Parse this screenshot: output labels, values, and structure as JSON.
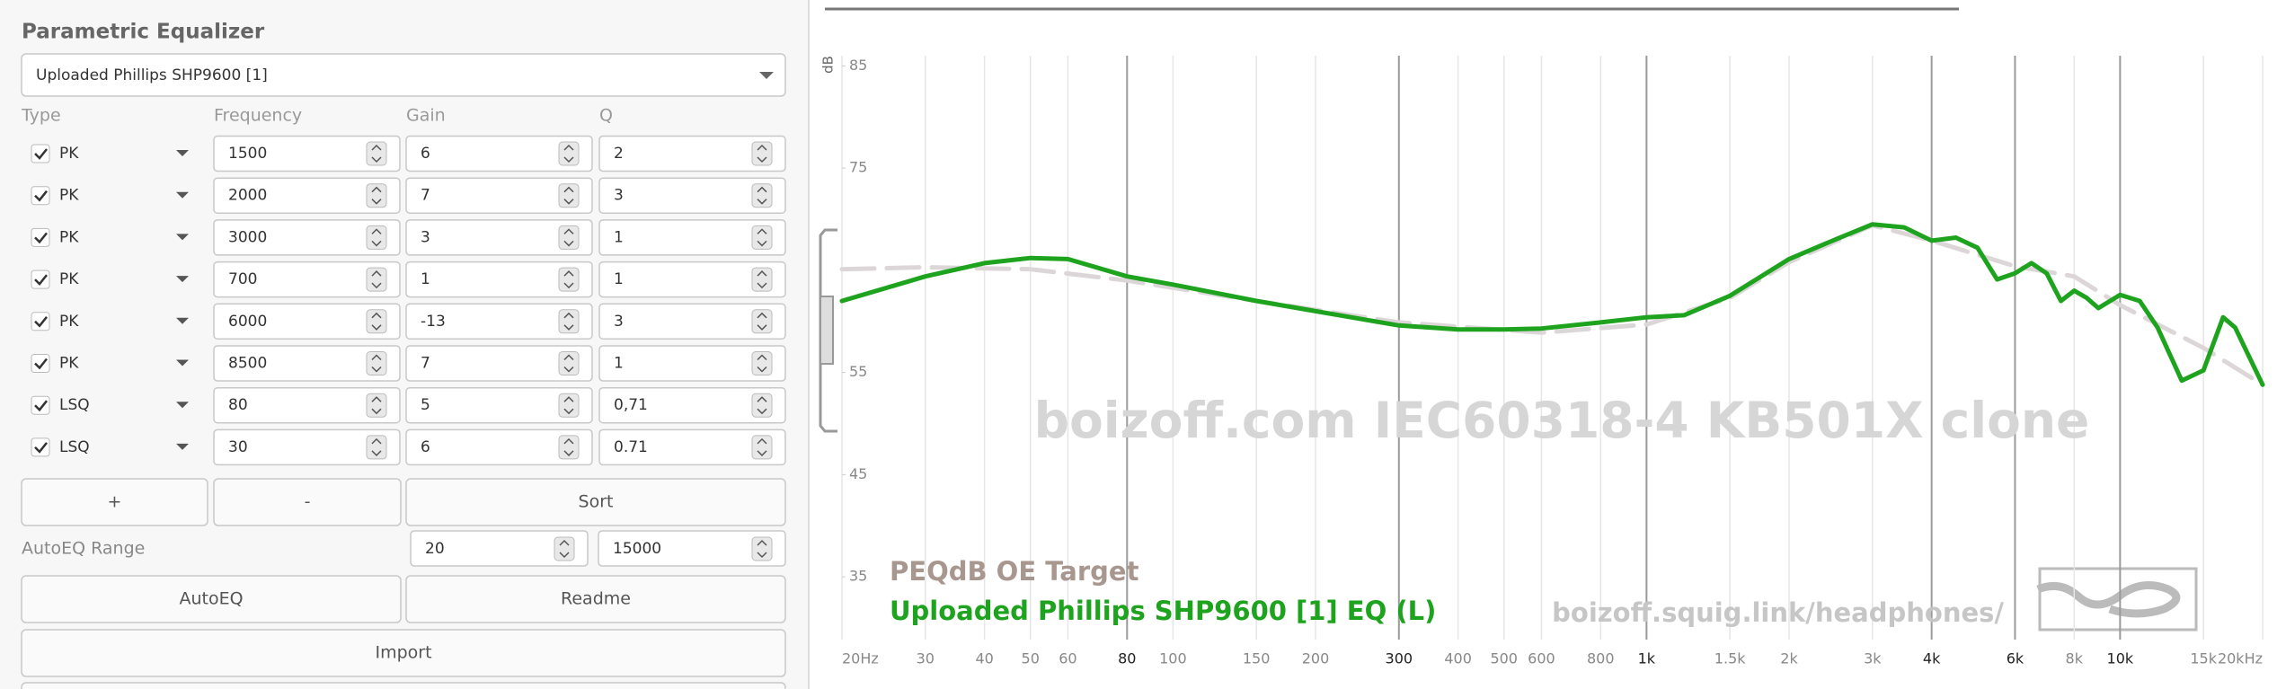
{
  "panel": {
    "title": "Parametric Equalizer",
    "preset": "Uploaded Phillips SHP9600 [1]",
    "columns": [
      "Type",
      "Frequency",
      "Gain",
      "Q"
    ],
    "filters": [
      {
        "type": "PK",
        "frequency": "1500",
        "gain": "6",
        "q": "2"
      },
      {
        "type": "PK",
        "frequency": "2000",
        "gain": "7",
        "q": "3"
      },
      {
        "type": "PK",
        "frequency": "3000",
        "gain": "3",
        "q": "1"
      },
      {
        "type": "PK",
        "frequency": "700",
        "gain": "1",
        "q": "1"
      },
      {
        "type": "PK",
        "frequency": "6000",
        "gain": "-13",
        "q": "3"
      },
      {
        "type": "PK",
        "frequency": "8500",
        "gain": "7",
        "q": "1"
      },
      {
        "type": "LSQ",
        "frequency": "80",
        "gain": "5",
        "q": "0,71"
      },
      {
        "type": "LSQ",
        "frequency": "30",
        "gain": "6",
        "q": "0.71"
      }
    ],
    "buttons": {
      "add": "+",
      "remove": "-",
      "sort": "Sort"
    },
    "autoeq_range": {
      "label": "AutoEQ Range",
      "from": "20",
      "to": "15000"
    },
    "autoeq": "AutoEQ",
    "readme": "Readme",
    "import": "Import"
  },
  "graph": {
    "type": "line",
    "y_label": "dB",
    "x_scale": "log",
    "xlim": [
      20,
      20000
    ],
    "ylim": [
      30,
      86
    ],
    "xticks": [
      {
        "value": 20,
        "label": "20Hz"
      },
      30,
      40,
      50,
      60,
      80,
      100,
      150,
      200,
      300,
      400,
      500,
      600,
      800,
      {
        "value": 1000,
        "label": "1k"
      },
      {
        "value": 1500,
        "label": "1.5k"
      },
      {
        "value": 2000,
        "label": "2k"
      },
      {
        "value": 3000,
        "label": "3k"
      },
      {
        "value": 4000,
        "label": "4k"
      },
      {
        "value": 6000,
        "label": "6k"
      },
      {
        "value": 8000,
        "label": "8k"
      },
      {
        "value": 10000,
        "label": "10k"
      },
      {
        "value": 15000,
        "label": "15k"
      },
      {
        "value": 20000,
        "label": "20kHz"
      }
    ],
    "emphasized_xticks": [
      80,
      300,
      1000,
      4000,
      6000,
      10000
    ],
    "yticks": [
      35,
      45,
      55,
      75,
      85
    ],
    "series": [
      {
        "name": "PEQdB OE Target",
        "color": "#ddd6d9",
        "label_color": "#a8978f",
        "dashed": true,
        "x": [
          20,
          30,
          50,
          80,
          150,
          300,
          600,
          1000,
          1500,
          2000,
          3000,
          4000,
          6000,
          8000,
          10000,
          15000,
          20000
        ],
        "values": [
          65.1,
          65.3,
          65.1,
          64,
          62,
          59.9,
          58.9,
          59.7,
          62.3,
          65.8,
          69.4,
          67.9,
          65.4,
          64.4,
          61.6,
          57.4,
          53.8
        ]
      },
      {
        "name": "Uploaded Phillips SHP9600 [1] EQ (L)",
        "color": "#1ea31e",
        "label_color": "#1ea31e",
        "dashed": false,
        "x": [
          20,
          30,
          40,
          50,
          60,
          80,
          100,
          150,
          200,
          300,
          400,
          500,
          600,
          800,
          1000,
          1200,
          1500,
          2000,
          2500,
          3000,
          3500,
          4000,
          4500,
          5000,
          5500,
          6000,
          6500,
          7000,
          7500,
          8000,
          8500,
          9000,
          10000,
          11000,
          12000,
          13500,
          15000,
          16500,
          17500,
          20000
        ],
        "values": [
          62,
          64.4,
          65.7,
          66.2,
          66.1,
          64.4,
          63.6,
          62,
          61,
          59.6,
          59.2,
          59.2,
          59.3,
          59.9,
          60.4,
          60.6,
          62.5,
          66.1,
          68,
          69.5,
          69.2,
          67.9,
          68.2,
          67.2,
          64.1,
          64.7,
          65.7,
          64.7,
          62,
          63,
          62.3,
          61.3,
          62.6,
          62,
          59.4,
          54.2,
          55.2,
          60.4,
          59.4,
          53.8
        ]
      }
    ],
    "watermark": "boizoff.com IEC60318-4 KB501X clone",
    "url": "boizoff.squig.link/headphones/"
  }
}
